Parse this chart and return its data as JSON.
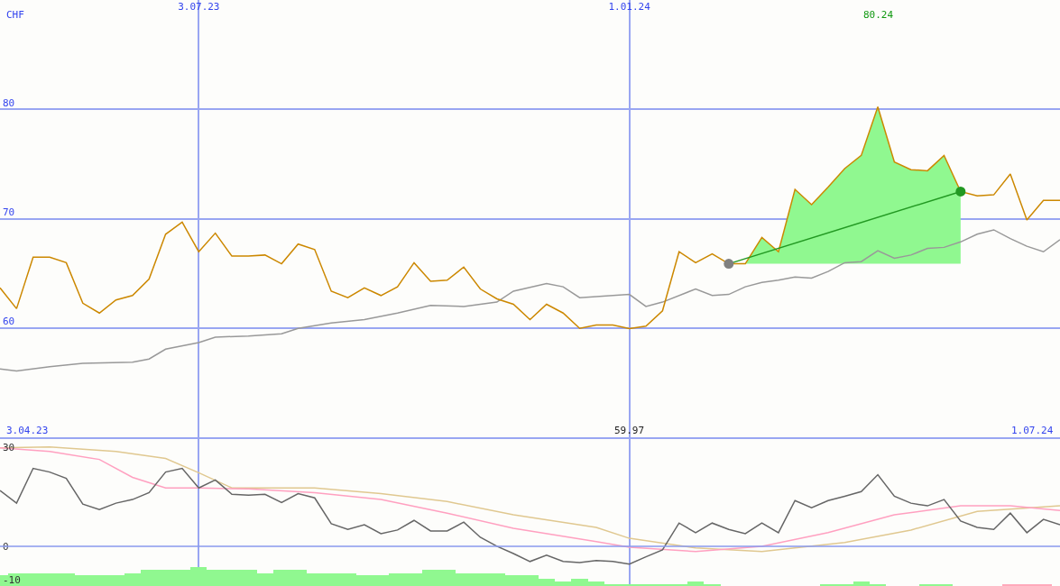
{
  "chart_data": [
    {
      "type": "line",
      "ylabel": "CHF",
      "x": [
        "2023-04-10",
        "2023-04-17",
        "2023-04-24",
        "2023-05-01",
        "2023-05-08",
        "2023-05-15",
        "2023-05-22",
        "2023-05-29",
        "2023-06-05",
        "2023-06-12",
        "2023-06-19",
        "2023-06-26",
        "2023-07-03",
        "2023-07-10",
        "2023-07-17",
        "2023-07-24",
        "2023-07-31",
        "2023-08-07",
        "2023-08-14",
        "2023-08-21",
        "2023-08-28",
        "2023-09-04",
        "2023-09-11",
        "2023-09-18",
        "2023-09-25",
        "2023-10-02",
        "2023-10-09",
        "2023-10-16",
        "2023-10-23",
        "2023-10-30",
        "2023-11-06",
        "2023-11-13",
        "2023-11-20",
        "2023-11-27",
        "2023-12-04",
        "2023-12-11",
        "2023-12-18",
        "2023-12-25",
        "2024-01-01",
        "2024-01-08",
        "2024-01-15",
        "2024-01-22",
        "2024-01-29",
        "2024-02-05",
        "2024-02-12",
        "2024-02-19",
        "2024-02-26",
        "2024-03-04",
        "2024-03-11",
        "2024-03-18",
        "2024-03-25",
        "2024-04-01",
        "2024-04-08",
        "2024-04-15",
        "2024-04-22",
        "2024-04-29",
        "2024-05-06",
        "2024-05-13",
        "2024-05-20",
        "2024-05-27",
        "2024-06-03",
        "2024-06-10",
        "2024-06-17",
        "2024-06-24",
        "2024-07-01"
      ],
      "xlim": [
        "2023-04-10",
        "2024-07-01"
      ],
      "xticks": [
        {
          "value": "2023-07-03",
          "label": "3.07.23"
        },
        {
          "value": "2024-01-01",
          "label": "1.01.24"
        }
      ],
      "ylim": [
        49.9,
        90
      ],
      "yticks": [
        60,
        70,
        80
      ],
      "grid": true,
      "annotations": [
        "3.04.23",
        "1.07.24",
        "80.24",
        "59.97"
      ],
      "series": [
        {
          "color": "#999999",
          "x": [
            "2023-04-10",
            "2023-04-17",
            "2023-05-01",
            "2023-05-15",
            "2023-06-05",
            "2023-06-12",
            "2023-06-19",
            "2023-07-03",
            "2023-07-10",
            "2023-07-24",
            "2023-08-07",
            "2023-08-14",
            "2023-08-28",
            "2023-09-11",
            "2023-09-25",
            "2023-10-09",
            "2023-10-23",
            "2023-11-06",
            "2023-11-13",
            "2023-11-27",
            "2023-12-04",
            "2023-12-11",
            "2024-01-01",
            "2024-01-08",
            "2024-01-15",
            "2024-01-29",
            "2024-02-05",
            "2024-02-12",
            "2024-02-19",
            "2024-02-26",
            "2024-03-04",
            "2024-03-11",
            "2024-03-18",
            "2024-03-25",
            "2024-04-01",
            "2024-04-08",
            "2024-04-15",
            "2024-04-22",
            "2024-04-29",
            "2024-05-06",
            "2024-05-13",
            "2024-05-20",
            "2024-05-27",
            "2024-06-03",
            "2024-06-10",
            "2024-06-17",
            "2024-06-24",
            "2024-07-01"
          ],
          "values": [
            56.3,
            56.1,
            56.5,
            56.8,
            56.9,
            57.2,
            58.1,
            58.7,
            59.2,
            59.3,
            59.5,
            60.0,
            60.5,
            60.8,
            61.4,
            62.1,
            62.0,
            62.4,
            63.4,
            64.1,
            63.8,
            62.8,
            63.1,
            62.0,
            62.4,
            63.6,
            63.0,
            63.1,
            63.8,
            64.2,
            64.4,
            64.7,
            64.6,
            65.2,
            66.0,
            66.1,
            67.1,
            66.4,
            66.7,
            67.3,
            67.4,
            67.9,
            68.6,
            69.0,
            68.2,
            67.5,
            67.0,
            68.1
          ]
        },
        {
          "color": "#cc8800",
          "values": [
            63.7,
            61.8,
            66.5,
            66.5,
            66.0,
            62.3,
            61.4,
            62.6,
            63.0,
            64.5,
            68.6,
            69.7,
            67.0,
            68.7,
            66.6,
            66.6,
            66.7,
            65.9,
            67.7,
            67.2,
            63.4,
            62.8,
            63.7,
            63.0,
            63.8,
            66.0,
            64.3,
            64.4,
            65.6,
            63.6,
            62.7,
            62.2,
            60.8,
            62.2,
            61.4,
            60.0,
            60.3,
            60.3,
            59.97,
            60.2,
            61.6,
            67.0,
            66.0,
            66.8,
            65.9,
            65.9,
            68.3,
            67.0,
            72.7,
            71.3,
            72.9,
            74.6,
            75.8,
            80.24,
            75.2,
            74.5,
            74.4,
            75.8,
            72.5,
            72.1,
            72.2,
            74.1,
            69.9,
            71.7,
            71.7
          ],
          "lower": [
            null,
            null,
            null,
            null,
            null,
            null,
            null,
            null,
            null,
            null,
            null,
            null,
            null,
            null,
            null,
            null,
            null,
            null,
            null,
            null,
            null,
            null,
            null,
            null,
            null,
            null,
            null,
            null,
            null,
            null,
            null,
            null,
            null,
            null,
            null,
            null,
            null,
            null,
            null,
            null,
            null,
            null,
            null,
            null,
            null,
            65.9,
            65.9,
            65.9,
            65.9,
            65.9,
            65.9,
            65.9,
            65.9,
            65.9,
            65.9,
            65.9,
            65.9,
            65.9,
            65.9,
            null,
            null,
            null,
            null,
            null,
            null
          ],
          "upper": [
            null,
            null,
            null,
            null,
            null,
            null,
            null,
            null,
            null,
            null,
            null,
            null,
            null,
            null,
            null,
            null,
            null,
            null,
            null,
            null,
            null,
            null,
            null,
            null,
            null,
            null,
            null,
            null,
            null,
            null,
            null,
            null,
            null,
            null,
            null,
            null,
            null,
            null,
            null,
            null,
            null,
            null,
            null,
            null,
            null,
            65.9,
            68.3,
            67.0,
            72.7,
            71.3,
            72.9,
            74.6,
            75.8,
            80.24,
            75.2,
            74.5,
            74.4,
            75.8,
            72.5,
            null,
            null,
            null,
            null,
            null,
            null
          ]
        },
        {
          "color": "#229922",
          "marker": "circle",
          "x": [
            "2024-02-12",
            "2024-05-20"
          ],
          "values": [
            65.9,
            72.5
          ],
          "colors": [
            "#808080",
            "#229922"
          ]
        }
      ]
    },
    {
      "type": "line",
      "x": [
        "2023-04-10",
        "2023-04-17",
        "2023-04-24",
        "2023-05-01",
        "2023-05-08",
        "2023-05-15",
        "2023-05-22",
        "2023-05-29",
        "2023-06-05",
        "2023-06-12",
        "2023-06-19",
        "2023-06-26",
        "2023-07-03",
        "2023-07-10",
        "2023-07-17",
        "2023-07-24",
        "2023-07-31",
        "2023-08-07",
        "2023-08-14",
        "2023-08-21",
        "2023-08-28",
        "2023-09-04",
        "2023-09-11",
        "2023-09-18",
        "2023-09-25",
        "2023-10-02",
        "2023-10-09",
        "2023-10-16",
        "2023-10-23",
        "2023-10-30",
        "2023-11-06",
        "2023-11-13",
        "2023-11-20",
        "2023-11-27",
        "2023-12-04",
        "2023-12-11",
        "2023-12-18",
        "2023-12-25",
        "2024-01-01",
        "2024-01-08",
        "2024-01-15",
        "2024-01-22",
        "2024-01-29",
        "2024-02-05",
        "2024-02-12",
        "2024-02-19",
        "2024-02-26",
        "2024-03-04",
        "2024-03-11",
        "2024-03-18",
        "2024-03-25",
        "2024-04-01",
        "2024-04-08",
        "2024-04-15",
        "2024-04-22",
        "2024-04-29",
        "2024-05-06",
        "2024-05-13",
        "2024-05-20",
        "2024-05-27",
        "2024-06-03",
        "2024-06-10",
        "2024-06-17",
        "2024-06-24",
        "2024-07-01"
      ],
      "xlim": [
        "2023-04-10",
        "2024-07-01"
      ],
      "xticks": [
        {
          "value": "2023-07-03",
          "label": null
        },
        {
          "value": "2024-01-01",
          "label": null
        }
      ],
      "ylim": [
        -12,
        32.4
      ],
      "yticks": [
        -10,
        0,
        30
      ],
      "grid": "x",
      "tick_labels": "y",
      "ref_lines": [
        {
          "axis": "y",
          "value": 0,
          "color": "#8899ee"
        }
      ],
      "series": [
        {
          "type": "bar",
          "x": [
            "2023-04-10",
            "2023-04-17",
            "2023-04-24",
            "2023-05-01",
            "2023-05-08",
            "2023-05-15",
            "2023-05-22",
            "2023-05-29",
            "2023-06-05",
            "2023-06-12",
            "2023-06-19",
            "2023-06-26",
            "2023-07-03",
            "2023-07-10",
            "2023-07-17",
            "2023-07-24",
            "2023-07-31",
            "2023-08-07",
            "2023-08-14",
            "2023-08-21",
            "2023-08-28",
            "2023-09-04",
            "2023-09-11",
            "2023-09-18",
            "2023-09-25",
            "2023-10-02",
            "2023-10-09",
            "2023-10-16",
            "2023-10-23",
            "2023-10-30",
            "2023-11-06",
            "2023-11-13",
            "2023-11-20",
            "2023-11-27",
            "2023-12-04",
            "2023-12-11",
            "2023-12-18",
            "2023-12-25",
            "2024-01-01",
            "2024-01-08",
            "2024-01-15",
            "2024-01-22",
            "2024-01-29",
            "2024-02-05",
            "2024-02-12",
            "2024-02-19",
            "2024-02-26",
            "2024-03-04",
            "2024-03-11",
            "2024-03-18",
            "2024-03-25",
            "2024-04-01",
            "2024-04-08",
            "2024-04-15",
            "2024-04-22",
            "2024-04-29",
            "2024-05-06",
            "2024-05-13",
            "2024-05-20",
            "2024-05-27",
            "2024-06-03",
            "2024-06-10",
            "2024-06-17",
            "2024-06-24"
          ],
          "values": [
            3.2,
            3.8,
            3.8,
            3.8,
            3.8,
            3.2,
            3.2,
            3.2,
            3.8,
            4.9,
            4.9,
            4.9,
            5.7,
            4.9,
            4.9,
            4.9,
            3.8,
            4.9,
            4.9,
            3.8,
            3.8,
            3.8,
            3.2,
            3.2,
            3.8,
            3.8,
            4.9,
            4.9,
            3.8,
            3.8,
            3.8,
            3.2,
            3.2,
            2.3,
            1.5,
            2.3,
            1.5,
            0.6,
            0.6,
            0.6,
            0.6,
            0.6,
            1.5,
            0.6,
            null,
            null,
            null,
            null,
            null,
            null,
            0.6,
            0.6,
            1.5,
            0.6,
            null,
            null,
            0.6,
            0.6,
            null,
            null,
            null,
            0.6,
            0.6,
            0.6
          ],
          "base": [
            -12,
            -12,
            -12,
            -12,
            -12,
            -12,
            -12,
            -12,
            -12,
            -12,
            -12,
            -12,
            -12,
            -12,
            -12,
            -12,
            -12,
            -12,
            -12,
            -12,
            -12,
            -12,
            -12,
            -12,
            -12,
            -12,
            -12,
            -12,
            -12,
            -12,
            -12,
            -12,
            -12,
            -12,
            -12,
            -12,
            -12,
            -12,
            -12,
            -12,
            -12,
            -12,
            -12,
            -12,
            null,
            null,
            null,
            null,
            null,
            null,
            -12,
            -12,
            -12,
            -12,
            null,
            null,
            -12,
            -12,
            null,
            null,
            null,
            -12,
            -12,
            -12
          ],
          "colors": [
            "#90f890",
            "#90f890",
            "#90f890",
            "#90f890",
            "#90f890",
            "#90f890",
            "#90f890",
            "#90f890",
            "#90f890",
            "#90f890",
            "#90f890",
            "#90f890",
            "#90f890",
            "#90f890",
            "#90f890",
            "#90f890",
            "#90f890",
            "#90f890",
            "#90f890",
            "#90f890",
            "#90f890",
            "#90f890",
            "#90f890",
            "#90f890",
            "#90f890",
            "#90f890",
            "#90f890",
            "#90f890",
            "#90f890",
            "#90f890",
            "#90f890",
            "#90f890",
            "#90f890",
            "#90f890",
            "#90f890",
            "#90f890",
            "#90f890",
            "#90f890",
            "#90f890",
            "#90f890",
            "#90f890",
            "#90f890",
            "#90f890",
            "#90f890",
            "#90f890",
            "#90f890",
            "#90f890",
            "#90f890",
            "#90f890",
            "#90f890",
            "#90f890",
            "#90f890",
            "#90f890",
            "#90f890",
            "#90f890",
            "#90f890",
            "#90f890",
            "#90f890",
            "#90f890",
            "#90f890",
            "#90f890",
            "#ffaabb",
            "#ffaabb",
            "#ffaabb"
          ]
        },
        {
          "color": "#e0c890",
          "x": [
            "2023-04-10",
            "2023-05-01",
            "2023-05-29",
            "2023-06-19",
            "2023-07-03",
            "2023-07-17",
            "2023-08-21",
            "2023-09-18",
            "2023-10-16",
            "2023-11-13",
            "2023-12-18",
            "2024-01-01",
            "2024-01-29",
            "2024-02-26",
            "2024-04-01",
            "2024-04-29",
            "2024-05-27",
            "2024-07-01"
          ],
          "values": [
            29.7,
            30.0,
            28.6,
            26.5,
            22.2,
            17.6,
            17.6,
            15.9,
            13.5,
            9.5,
            5.7,
            2.4,
            -0.5,
            -1.6,
            1.1,
            4.9,
            10.5,
            12.2
          ]
        },
        {
          "color": "#ffa0c0",
          "x": [
            "2023-04-10",
            "2023-05-01",
            "2023-05-22",
            "2023-06-05",
            "2023-06-19",
            "2023-07-03",
            "2023-07-24",
            "2023-08-21",
            "2023-09-18",
            "2023-10-16",
            "2023-11-13",
            "2023-12-18",
            "2024-01-01",
            "2024-01-29",
            "2024-02-26",
            "2024-03-25",
            "2024-04-22",
            "2024-05-20",
            "2024-06-10",
            "2024-07-01"
          ],
          "values": [
            29.7,
            28.6,
            26.2,
            20.8,
            17.6,
            17.6,
            17.3,
            16.2,
            14.1,
            10.0,
            5.4,
            1.4,
            -0.3,
            -1.6,
            0.0,
            4.1,
            9.5,
            12.2,
            12.2,
            10.8
          ]
        },
        {
          "color": "#666666",
          "values": [
            16.8,
            13.0,
            23.5,
            22.4,
            20.5,
            12.7,
            11.1,
            13.0,
            14.1,
            16.2,
            22.4,
            23.5,
            17.6,
            20.0,
            15.7,
            15.4,
            15.7,
            13.2,
            15.9,
            14.6,
            6.8,
            5.1,
            6.5,
            3.8,
            4.9,
            7.8,
            4.6,
            4.6,
            7.3,
            2.7,
            0.0,
            -2.2,
            -4.6,
            -2.7,
            -4.6,
            -4.9,
            -4.3,
            -4.6,
            -5.4,
            -3.2,
            -1.1,
            7.0,
            4.1,
            7.0,
            5.1,
            3.8,
            7.0,
            4.1,
            13.8,
            11.6,
            13.8,
            15.1,
            16.5,
            21.6,
            15.1,
            13.0,
            12.2,
            14.1,
            7.6,
            5.7,
            5.1,
            10.0,
            4.1,
            8.1,
            6.5
          ]
        }
      ]
    }
  ]
}
